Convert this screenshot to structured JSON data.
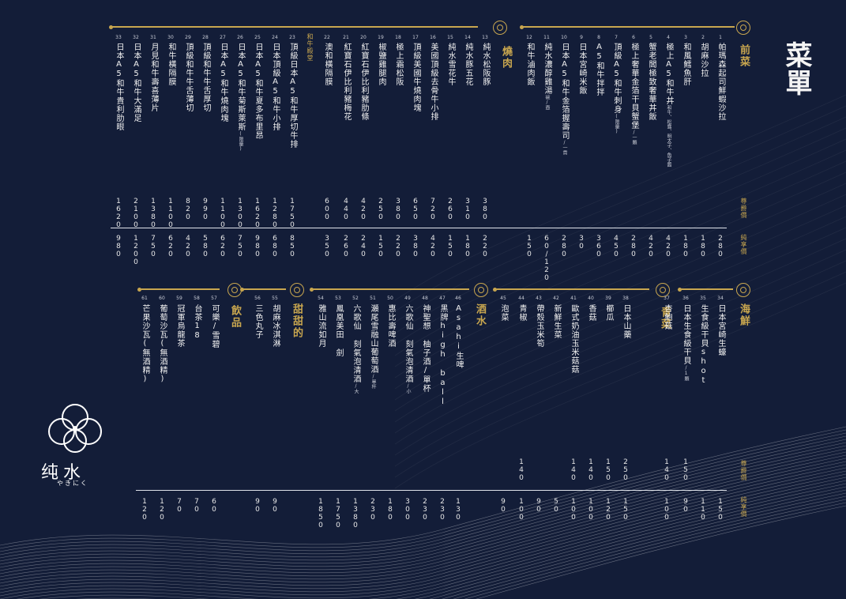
{
  "title": "菜單",
  "brand": {
    "name": "纯水",
    "sub": "やきにく"
  },
  "price_labels": {
    "member": "尊爵價",
    "regular": "純享價"
  },
  "top": {
    "categories": [
      {
        "key": "appetizer",
        "label": "前菜"
      },
      {
        "key": "yakiniku",
        "label": "燒肉"
      },
      {
        "key": "wagyu",
        "label": "和牛殿堂"
      }
    ],
    "items": [
      {
        "no": "1",
        "name": "帕瑪森起司鮮蝦沙拉",
        "member": "",
        "regular": "280"
      },
      {
        "no": "2",
        "name": "胡麻沙拉",
        "member": "",
        "regular": "180"
      },
      {
        "no": "3",
        "name": "和風鱈魚肝",
        "member": "",
        "regular": "180"
      },
      {
        "no": "4",
        "name": "極上A5和牛丼",
        "note": "和牛、松露、明太子、魚子醬",
        "member": "",
        "regular": "420"
      },
      {
        "no": "5",
        "name": "蟹老闆極致奢華丼飯",
        "member": "",
        "regular": "420"
      },
      {
        "no": "6",
        "name": "極上奢華金箔干貝蟹堡",
        "note": "/一顆",
        "member": "",
        "regular": "280"
      },
      {
        "no": "7",
        "name": "頂級A5和牛刺身",
        "note": "(限量)",
        "member": "",
        "regular": "450"
      },
      {
        "no": "8",
        "name": "A5和牛拌拌",
        "member": "",
        "regular": "360"
      },
      {
        "no": "9",
        "name": "日本宮崎米飯",
        "member": "",
        "regular": "30"
      },
      {
        "no": "10",
        "name": "日本A5和牛金箔握壽司",
        "note": "/一貫",
        "member": "",
        "regular": "280"
      },
      {
        "no": "11",
        "name": "純水濃醇雞湯",
        "note": "碗/壺",
        "member": "",
        "regular": "60/120"
      },
      {
        "no": "12",
        "name": "和牛滷肉飯",
        "member": "",
        "regular": "150"
      },
      {
        "no": "13",
        "name": "純水松阪豚",
        "member": "380",
        "regular": "220"
      },
      {
        "no": "14",
        "name": "純水豚五花",
        "member": "310",
        "regular": "180"
      },
      {
        "no": "15",
        "name": "純水雪花牛",
        "member": "260",
        "regular": "150"
      },
      {
        "no": "16",
        "name": "美國頂級去骨牛小排",
        "member": "720",
        "regular": "420"
      },
      {
        "no": "17",
        "name": "頂級美國牛燒肉塊",
        "member": "650",
        "regular": "380"
      },
      {
        "no": "18",
        "name": "極上霜松阪",
        "member": "380",
        "regular": "220"
      },
      {
        "no": "19",
        "name": "椒鹽雞腿肉",
        "member": "250",
        "regular": "150"
      },
      {
        "no": "20",
        "name": "紅寶石伊比利豬肋條",
        "member": "420",
        "regular": "240"
      },
      {
        "no": "21",
        "name": "紅寶石伊比利豬梅花",
        "member": "440",
        "regular": "260"
      },
      {
        "no": "22",
        "name": "澳和橫隔膜",
        "member": "600",
        "regular": "350"
      },
      {
        "no": "23",
        "name": "頂級日本A5和牛厚切牛排",
        "member": "1750",
        "regular": "850"
      },
      {
        "no": "24",
        "name": "日本頂級A5和牛小排",
        "member": "1280",
        "regular": "680"
      },
      {
        "no": "25",
        "name": "日本A5和牛夏多布里昂",
        "member": "1620",
        "regular": "980"
      },
      {
        "no": "26",
        "name": "日本A5和牛菊斯萊斯",
        "note": "(限量)",
        "member": "1300",
        "regular": "750"
      },
      {
        "no": "27",
        "name": "日本A5和牛燒肉塊",
        "member": "1100",
        "regular": "620"
      },
      {
        "no": "28",
        "name": "頂級和牛牛舌厚切",
        "member": "990",
        "regular": "580"
      },
      {
        "no": "29",
        "name": "頂級和牛牛舌薄切",
        "member": "820",
        "regular": "420"
      },
      {
        "no": "30",
        "name": "和牛橫隔膜",
        "member": "1100",
        "regular": "620"
      },
      {
        "no": "31",
        "name": "月見和牛壽喜薄片",
        "member": "1380",
        "regular": "750"
      },
      {
        "no": "32",
        "name": "日本A5和牛大滿足",
        "member": "2100",
        "regular": "1200"
      },
      {
        "no": "33",
        "name": "日本A5和牛貴利肋眼",
        "member": "1620",
        "regular": "980"
      }
    ]
  },
  "bottom": {
    "categories": [
      {
        "key": "seafood",
        "label": "海鮮"
      },
      {
        "key": "veg",
        "label": "青菜"
      },
      {
        "key": "drinks",
        "label": "酒水"
      },
      {
        "key": "dessert",
        "label": "甜甜的"
      },
      {
        "key": "beverage",
        "label": "飲品"
      }
    ],
    "items": [
      {
        "no": "34",
        "name": "日本宮崎生蠔",
        "member": "",
        "regular": "150"
      },
      {
        "no": "35",
        "name": "生食級干貝shot",
        "member": "",
        "regular": "110"
      },
      {
        "no": "36",
        "name": "日本生食級干貝",
        "note": "/1顆",
        "member": "150",
        "regular": "90"
      },
      {
        "no": "37",
        "name": "杏鮑菇",
        "member": "140",
        "regular": "100"
      },
      {
        "no": "38",
        "name": "日本山藥",
        "member": "250",
        "regular": "150"
      },
      {
        "no": "39",
        "name": "櫛瓜",
        "member": "150",
        "regular": "120"
      },
      {
        "no": "40",
        "name": "香菇",
        "member": "140",
        "regular": "100"
      },
      {
        "no": "41",
        "name": "歐式奶油玉米菇菇",
        "member": "140",
        "regular": "100"
      },
      {
        "no": "42",
        "name": "新鮮生菜",
        "member": "",
        "regular": "50"
      },
      {
        "no": "43",
        "name": "帶殼玉米筍",
        "member": "",
        "regular": "90"
      },
      {
        "no": "44",
        "name": "青椒",
        "member": "140",
        "regular": "100"
      },
      {
        "no": "45",
        "name": "泡菜",
        "member": "",
        "regular": "90"
      },
      {
        "no": "46",
        "name": "Asahi生啤",
        "member": "",
        "regular": "130"
      },
      {
        "no": "47",
        "name": "黑牌high ball",
        "member": "",
        "regular": "230"
      },
      {
        "no": "48",
        "name": "神聖想 柚子酒/單杯",
        "member": "",
        "regular": "230"
      },
      {
        "no": "49",
        "name": "六歌仙 刻氣泡清酒",
        "note": "/小",
        "member": "",
        "regular": "300"
      },
      {
        "no": "50",
        "name": "惠比壽啤酒",
        "member": "",
        "regular": "180"
      },
      {
        "no": "51",
        "name": "瀬尾雪融山葡萄酒",
        "note": "/單杯",
        "member": "",
        "regular": "230"
      },
      {
        "no": "52",
        "name": "六歌仙 刻氣泡清酒",
        "note": "/大",
        "member": "",
        "regular": "1380"
      },
      {
        "no": "53",
        "name": "鳳凰美田 劍",
        "member": "",
        "regular": "1750"
      },
      {
        "no": "54",
        "name": "雅山流如月",
        "member": "",
        "regular": "1850"
      },
      {
        "no": "55",
        "name": "胡麻冰淇淋",
        "member": "",
        "regular": "90"
      },
      {
        "no": "56",
        "name": "三色丸子",
        "member": "",
        "regular": "90"
      },
      {
        "no": "57",
        "name": "可樂/雪碧",
        "member": "",
        "regular": "60"
      },
      {
        "no": "58",
        "name": "台茶18",
        "member": "",
        "regular": "70"
      },
      {
        "no": "59",
        "name": "冠軍烏龍茶",
        "member": "",
        "regular": "70"
      },
      {
        "no": "60",
        "name": "葡萄沙瓦(無酒精)",
        "member": "",
        "regular": "120"
      },
      {
        "no": "61",
        "name": "芒果沙瓦(無酒精)",
        "member": "",
        "regular": "120"
      }
    ]
  },
  "colors": {
    "background": "#131d38",
    "accent": "#c8a64f",
    "text": "#f2f2f2"
  }
}
